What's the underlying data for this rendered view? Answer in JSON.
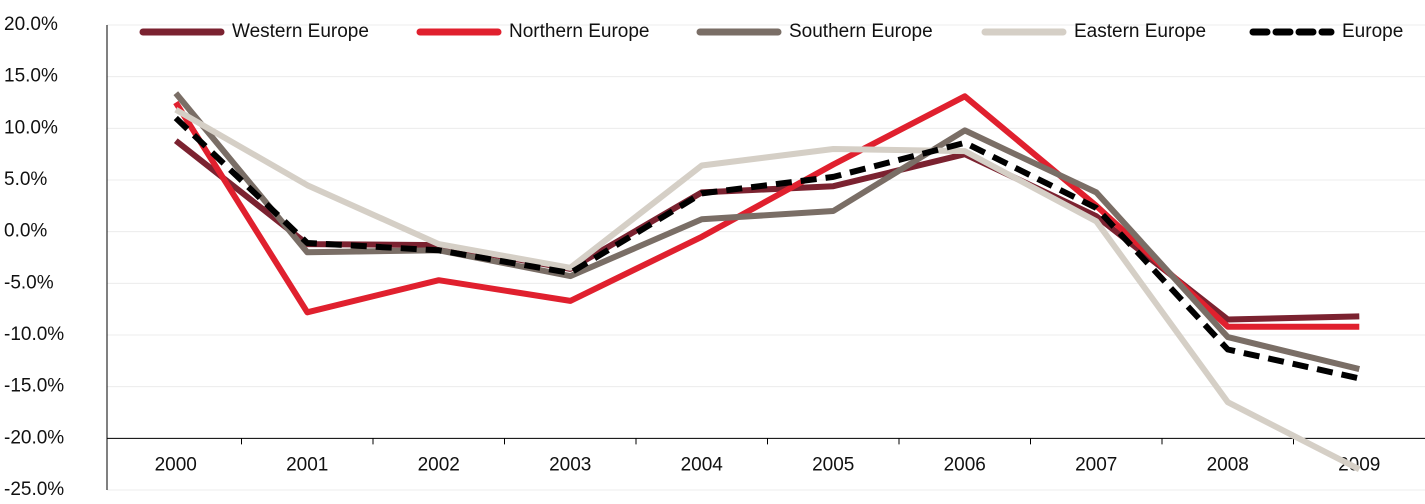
{
  "chart_data": {
    "type": "line",
    "categories": [
      "2000",
      "2001",
      "2002",
      "2003",
      "2004",
      "2005",
      "2006",
      "2007",
      "2008",
      "2009"
    ],
    "series": [
      {
        "name": "Western Europe",
        "color": "#7b2230",
        "values": [
          8.8,
          -1.2,
          -1.3,
          -3.6,
          3.8,
          4.4,
          7.5,
          1.5,
          -8.5,
          -8.2
        ]
      },
      {
        "name": "Northern Europe",
        "color": "#e0202e",
        "values": [
          12.5,
          -7.8,
          -4.7,
          -6.7,
          -0.5,
          6.5,
          13.1,
          2.5,
          -9.2,
          -9.2
        ]
      },
      {
        "name": "Southern Europe",
        "color": "#7a6e66",
        "values": [
          13.4,
          -2.0,
          -1.8,
          -4.3,
          1.2,
          2.0,
          9.8,
          3.8,
          -10.2,
          -13.3
        ]
      },
      {
        "name": "Eastern Europe",
        "color": "#d5cfc6",
        "values": [
          11.8,
          4.5,
          -1.2,
          -3.5,
          6.4,
          8.0,
          7.8,
          1.0,
          -16.5,
          -23.0
        ]
      },
      {
        "name": "Europe",
        "color": "#000000",
        "style": "dashed",
        "values": [
          11.0,
          -1.1,
          -1.8,
          -4.0,
          3.7,
          5.3,
          8.6,
          2.3,
          -11.4,
          -14.2
        ]
      }
    ],
    "ylim": [
      -25,
      20
    ],
    "yticks": [
      {
        "value": 20,
        "label": "20.0%"
      },
      {
        "value": 15,
        "label": "15.0%"
      },
      {
        "value": 10,
        "label": "10.0%"
      },
      {
        "value": 5,
        "label": "5.0%"
      },
      {
        "value": 0,
        "label": "0.0%"
      },
      {
        "value": -5,
        "label": "-5.0%"
      },
      {
        "value": -10,
        "label": "-10.0%"
      },
      {
        "value": -15,
        "label": "-15.0%"
      },
      {
        "value": -20,
        "label": "-20.0%"
      },
      {
        "value": -25,
        "label": "-25.0%"
      }
    ],
    "x_axis_crosses": -20,
    "grid": true,
    "legend": "top"
  }
}
